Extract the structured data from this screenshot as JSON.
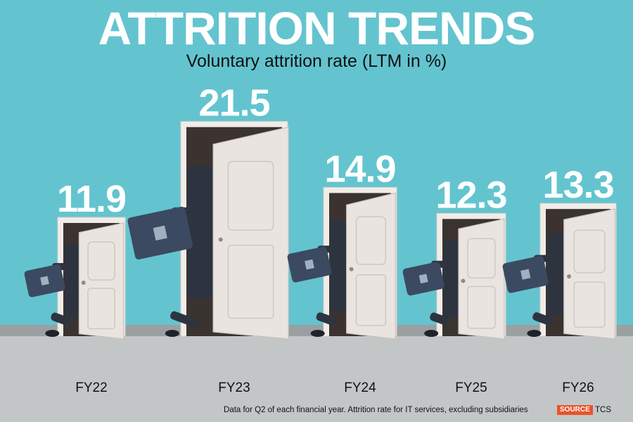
{
  "header": {
    "title": "ATTRITION TRENDS",
    "subtitle": "Voluntary attrition rate (LTM in %)"
  },
  "footer": {
    "note": "Data for Q2 of each financial year. Attrition rate for IT services, excluding subsidiaries",
    "source_label": "SOURCE",
    "source_value": "TCS"
  },
  "colors": {
    "background": "#63c4cf",
    "floor": "#c2c6c7",
    "door_frame": "#f1ece8",
    "door": "#e9e4df",
    "briefcase": "#3b4a60",
    "suit": "#2d3440",
    "source_badge": "#e8542b"
  },
  "chart_data": {
    "type": "bar",
    "title": "ATTRITION TRENDS",
    "subtitle": "Voluntary attrition rate (LTM in %)",
    "categories": [
      "FY22",
      "FY23",
      "FY24",
      "FY25",
      "FY26"
    ],
    "values": [
      11.9,
      21.5,
      14.9,
      12.3,
      13.3
    ],
    "value_labels": [
      "11.9",
      "21.5",
      "14.9",
      "12.3",
      "13.3"
    ],
    "xlabel": "",
    "ylabel": "",
    "ylim": [
      0,
      25
    ],
    "grid": false,
    "legend": "none"
  }
}
